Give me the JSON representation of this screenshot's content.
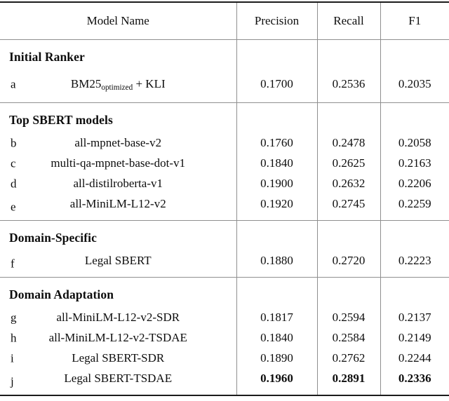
{
  "table": {
    "title": "model-evaluation-metrics",
    "columns": [
      {
        "label": "Model Name"
      },
      {
        "label": "Precision"
      },
      {
        "label": "Recall"
      },
      {
        "label": "F1"
      }
    ],
    "colors": {
      "background": "#ffffff",
      "text": "#0d0d0d",
      "thick_rule": "#1b1b1b",
      "thin_rule": "#8f8f8f"
    },
    "sections": [
      {
        "title": "Initial Ranker",
        "rows": [
          {
            "key": "a",
            "model_base": "BM25",
            "model_sub": "optimized",
            "model_rest": " + KLI",
            "precision": "0.1700",
            "recall": "0.2536",
            "f1": "0.2035",
            "emphasis": false
          }
        ]
      },
      {
        "title": "Top SBERT models",
        "rows": [
          {
            "key": "b",
            "model": "all-mpnet-base-v2",
            "precision": "0.1760",
            "recall": "0.2478",
            "f1": "0.2058",
            "emphasis": false
          },
          {
            "key": "c",
            "model": "multi-qa-mpnet-base-dot-v1",
            "precision": "0.1840",
            "recall": "0.2625",
            "f1": "0.2163",
            "emphasis": false
          },
          {
            "key": "d",
            "model": "all-distilroberta-v1",
            "precision": "0.1900",
            "recall": "0.2632",
            "f1": "0.2206",
            "emphasis": false
          },
          {
            "key": "e",
            "model": "all-MiniLM-L12-v2",
            "precision": "0.1920",
            "recall": "0.2745",
            "f1": "0.2259",
            "emphasis": false
          }
        ]
      },
      {
        "title": "Domain-Specific",
        "rows": [
          {
            "key": "f",
            "model": "Legal SBERT",
            "precision": "0.1880",
            "recall": "0.2720",
            "f1": "0.2223",
            "emphasis": false
          }
        ]
      },
      {
        "title": "Domain Adaptation",
        "rows": [
          {
            "key": "g",
            "model": "all-MiniLM-L12-v2-SDR",
            "precision": "0.1817",
            "recall": "0.2594",
            "f1": "0.2137",
            "emphasis": false
          },
          {
            "key": "h",
            "model": "all-MiniLM-L12-v2-TSDAE",
            "precision": "0.1840",
            "recall": "0.2584",
            "f1": "0.2149",
            "emphasis": false
          },
          {
            "key": "i",
            "model": "Legal SBERT-SDR",
            "precision": "0.1890",
            "recall": "0.2762",
            "f1": "0.2244",
            "emphasis": false
          },
          {
            "key": "j",
            "model": "Legal SBERT-TSDAE",
            "precision": "0.1960",
            "recall": "0.2891",
            "f1": "0.2336",
            "emphasis": true
          }
        ]
      }
    ]
  }
}
